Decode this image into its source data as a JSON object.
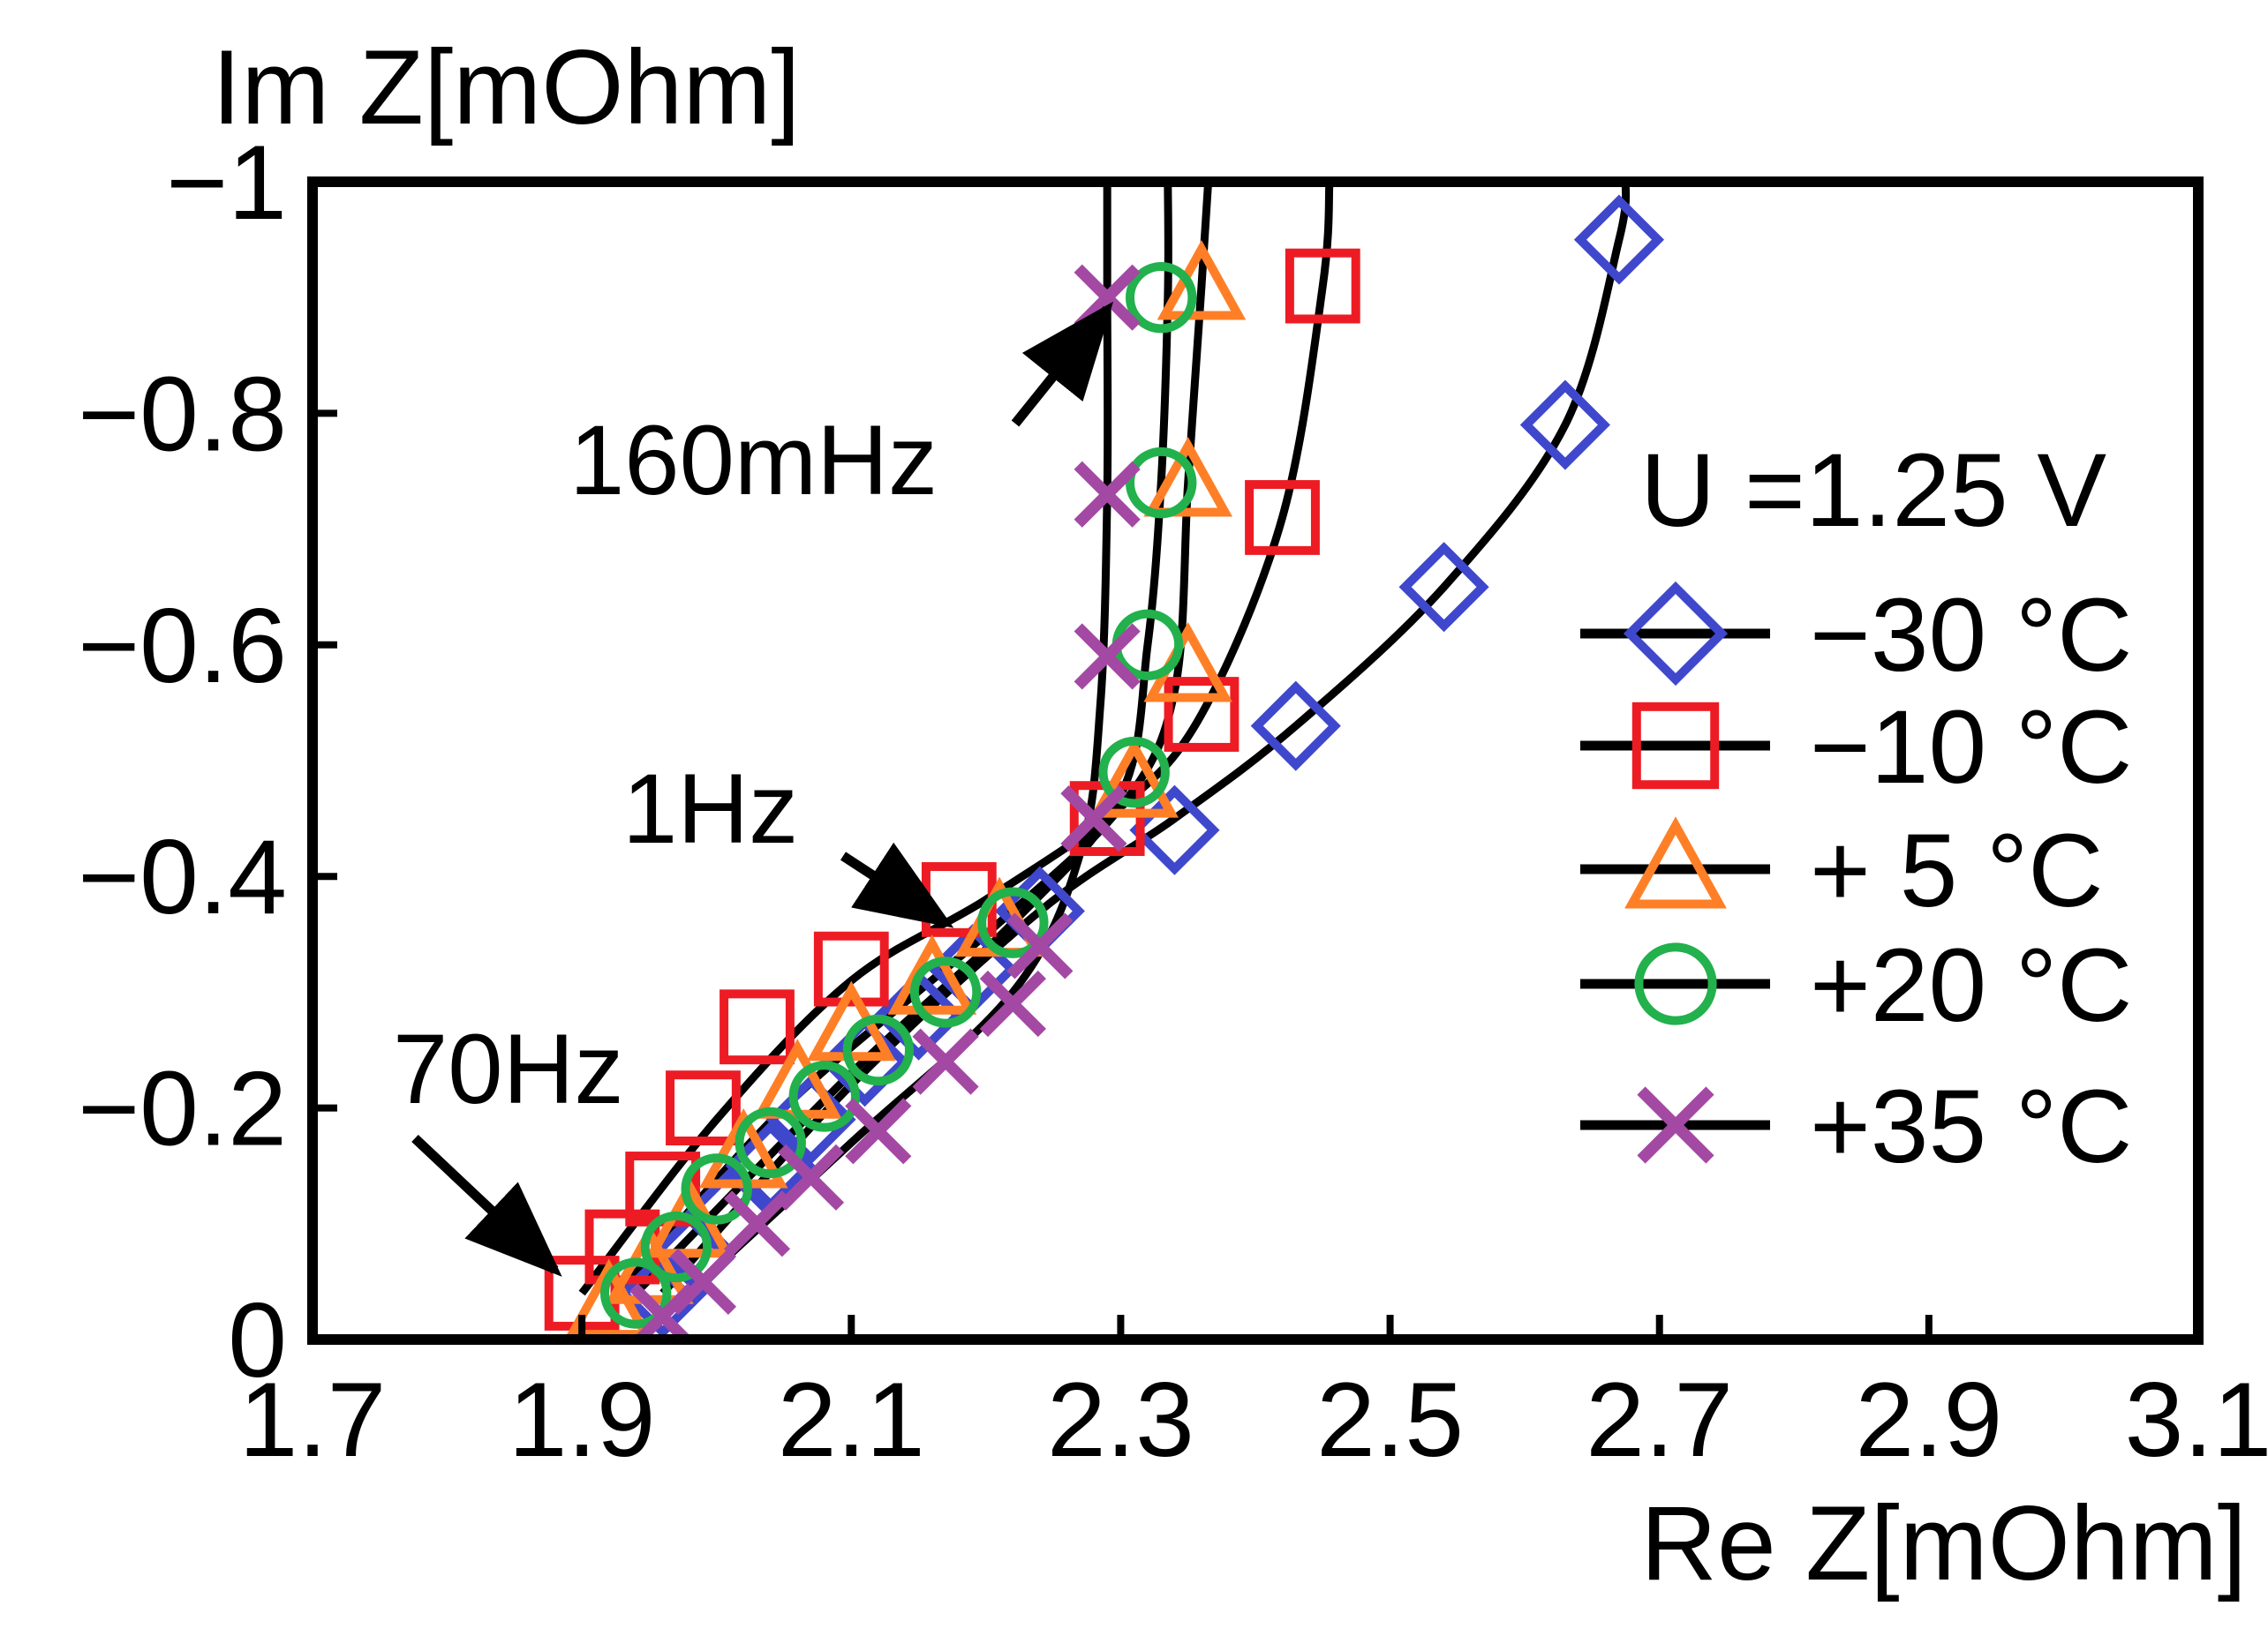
{
  "chart_data": {
    "type": "scatter",
    "title": "",
    "xlabel": "Re Z[mOhm]",
    "ylabel": "Im Z[mOhm]",
    "xlim": [
      1.7,
      3.1
    ],
    "ylim": [
      0,
      -1
    ],
    "x_ticks": [
      1.7,
      1.9,
      2.1,
      2.3,
      2.5,
      2.7,
      2.9,
      3.1
    ],
    "x_tick_labels": [
      "1.7",
      "1.9",
      "2.1",
      "2.3",
      "2.5",
      "2.7",
      "2.9",
      "3.1"
    ],
    "y_ticks": [
      0,
      -0.2,
      -0.4,
      -0.6,
      -0.8,
      -1
    ],
    "y_tick_labels": [
      "0",
      "−0.2",
      "−0.4",
      "−0.6",
      "−0.8",
      "−1"
    ],
    "grid": false,
    "legend": {
      "title": "U =1.25 V",
      "position": "right",
      "labels": [
        "−30 °C",
        "−10 °C",
        "+  5 °C",
        "+20 °C",
        "+35 °C"
      ]
    },
    "annotations": [
      {
        "text": "160mHz",
        "points_to": [
          2.29,
          -0.89
        ]
      },
      {
        "text": "1Hz",
        "points_to": [
          2.17,
          -0.36
        ]
      },
      {
        "text": "70Hz",
        "points_to": [
          1.88,
          -0.06
        ]
      }
    ],
    "series": [
      {
        "name": "−30 °C",
        "marker": "diamond",
        "color": "#3f48cc",
        "points": [
          [
            1.96,
            -0.04
          ],
          [
            1.98,
            -0.07
          ],
          [
            2.01,
            -0.11
          ],
          [
            2.04,
            -0.15
          ],
          [
            2.07,
            -0.19
          ],
          [
            2.11,
            -0.24
          ],
          [
            2.15,
            -0.28
          ],
          [
            2.19,
            -0.32
          ],
          [
            2.24,
            -0.37
          ],
          [
            2.34,
            -0.44
          ],
          [
            2.43,
            -0.53
          ],
          [
            2.54,
            -0.65
          ],
          [
            2.63,
            -0.79
          ],
          [
            2.67,
            -0.95
          ]
        ],
        "curve": [
          [
            1.96,
            -0.04
          ],
          [
            2.1,
            -0.22
          ],
          [
            2.24,
            -0.37
          ],
          [
            2.34,
            -0.45
          ],
          [
            2.43,
            -0.53
          ],
          [
            2.54,
            -0.65
          ],
          [
            2.63,
            -0.79
          ],
          [
            2.67,
            -0.95
          ],
          [
            2.675,
            -1.0
          ]
        ]
      },
      {
        "name": "−10 °C",
        "marker": "square",
        "color": "#ed1c24",
        "points": [
          [
            1.9,
            -0.04
          ],
          [
            1.93,
            -0.08
          ],
          [
            1.96,
            -0.13
          ],
          [
            1.99,
            -0.2
          ],
          [
            2.03,
            -0.27
          ],
          [
            2.1,
            -0.32
          ],
          [
            2.18,
            -0.38
          ],
          [
            2.29,
            -0.45
          ],
          [
            2.36,
            -0.54
          ],
          [
            2.42,
            -0.71
          ],
          [
            2.45,
            -0.91
          ]
        ],
        "curve": [
          [
            1.9,
            -0.04
          ],
          [
            2.0,
            -0.19
          ],
          [
            2.1,
            -0.31
          ],
          [
            2.2,
            -0.38
          ],
          [
            2.3,
            -0.46
          ],
          [
            2.36,
            -0.54
          ],
          [
            2.42,
            -0.71
          ],
          [
            2.45,
            -0.91
          ],
          [
            2.455,
            -1.0
          ]
        ]
      },
      {
        "name": "+  5 °C",
        "marker": "triangle",
        "color": "#ff7f27",
        "points": [
          [
            1.92,
            -0.03
          ],
          [
            1.95,
            -0.06
          ],
          [
            1.98,
            -0.1
          ],
          [
            2.02,
            -0.16
          ],
          [
            2.06,
            -0.22
          ],
          [
            2.1,
            -0.27
          ],
          [
            2.16,
            -0.31
          ],
          [
            2.21,
            -0.36
          ],
          [
            2.31,
            -0.48
          ],
          [
            2.35,
            -0.58
          ],
          [
            2.35,
            -0.74
          ],
          [
            2.36,
            -0.91
          ]
        ],
        "curve": [
          [
            1.92,
            -0.03
          ],
          [
            2.05,
            -0.2
          ],
          [
            2.2,
            -0.35
          ],
          [
            2.3,
            -0.46
          ],
          [
            2.34,
            -0.56
          ],
          [
            2.35,
            -0.74
          ],
          [
            2.36,
            -0.91
          ],
          [
            2.365,
            -1.0
          ]
        ]
      },
      {
        "name": "+20 °C",
        "marker": "circle",
        "color": "#22b14c",
        "points": [
          [
            1.94,
            -0.04
          ],
          [
            1.97,
            -0.08
          ],
          [
            2.0,
            -0.13
          ],
          [
            2.04,
            -0.17
          ],
          [
            2.08,
            -0.21
          ],
          [
            2.12,
            -0.25
          ],
          [
            2.17,
            -0.3
          ],
          [
            2.22,
            -0.36
          ],
          [
            2.31,
            -0.49
          ],
          [
            2.32,
            -0.6
          ],
          [
            2.33,
            -0.74
          ],
          [
            2.33,
            -0.9
          ]
        ],
        "curve": [
          [
            1.94,
            -0.04
          ],
          [
            2.1,
            -0.23
          ],
          [
            2.22,
            -0.36
          ],
          [
            2.3,
            -0.47
          ],
          [
            2.32,
            -0.6
          ],
          [
            2.33,
            -0.74
          ],
          [
            2.335,
            -0.9
          ],
          [
            2.335,
            -1.0
          ]
        ]
      },
      {
        "name": "+35 °C",
        "marker": "x",
        "color": "#a349a4",
        "points": [
          [
            1.96,
            -0.02
          ],
          [
            1.99,
            -0.05
          ],
          [
            2.03,
            -0.1
          ],
          [
            2.07,
            -0.14
          ],
          [
            2.12,
            -0.18
          ],
          [
            2.17,
            -0.24
          ],
          [
            2.22,
            -0.29
          ],
          [
            2.24,
            -0.34
          ],
          [
            2.28,
            -0.45
          ],
          [
            2.29,
            -0.59
          ],
          [
            2.29,
            -0.73
          ],
          [
            2.29,
            -0.9
          ]
        ],
        "curve": [
          [
            1.96,
            -0.02
          ],
          [
            2.1,
            -0.17
          ],
          [
            2.22,
            -0.3
          ],
          [
            2.27,
            -0.42
          ],
          [
            2.285,
            -0.55
          ],
          [
            2.29,
            -0.73
          ],
          [
            2.29,
            -0.9
          ],
          [
            2.29,
            -1.0
          ]
        ]
      }
    ]
  }
}
